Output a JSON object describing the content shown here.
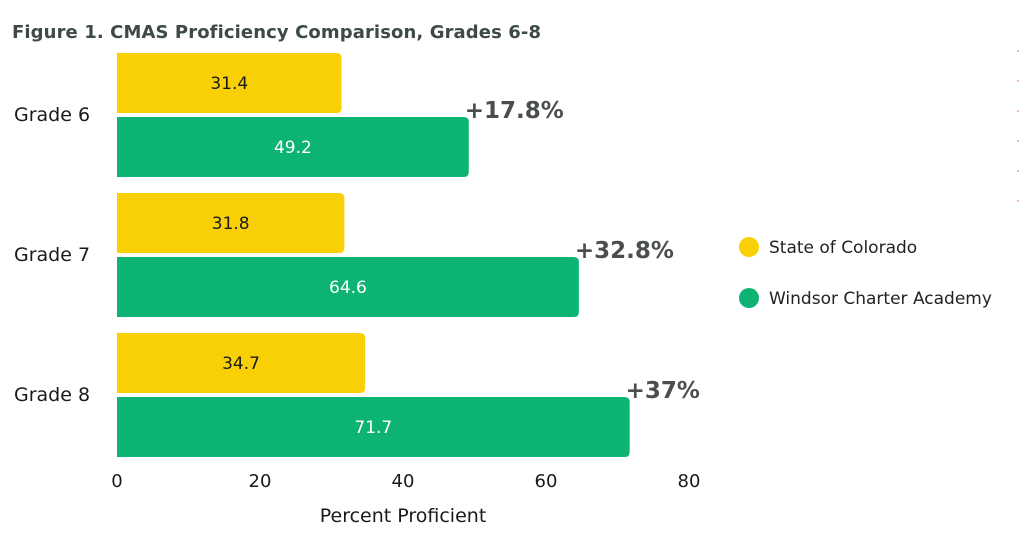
{
  "chart_data": {
    "type": "bar",
    "orientation": "horizontal",
    "title": "Figure 1. CMAS Proficiency Comparison, Grades 6-8",
    "xlabel": "Percent Proficient",
    "ylabel": "",
    "xlim": [
      0,
      80
    ],
    "xticks": [
      "0",
      "20",
      "40",
      "60",
      "80"
    ],
    "grid": false,
    "legend_position": "right",
    "categories": [
      "Grade 6",
      "Grade 7",
      "Grade 8"
    ],
    "series": [
      {
        "name": "State of Colorado",
        "color": "#f9d006",
        "label_color": "#1a1a1a",
        "values": [
          31.4,
          31.8,
          34.7
        ],
        "labels": [
          "31.4",
          "31.8",
          "34.7"
        ]
      },
      {
        "name": "Windsor Charter Academy",
        "color": "#0db373",
        "label_color": "#ffffff",
        "values": [
          49.2,
          64.6,
          71.7
        ],
        "labels": [
          "49.2",
          "64.6",
          "71.7"
        ]
      }
    ],
    "annotations": [
      "+17.8%",
      "+32.8%",
      "+37%"
    ]
  }
}
